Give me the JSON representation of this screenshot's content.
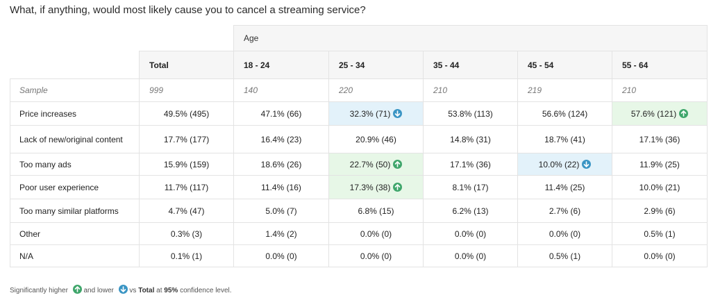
{
  "question": "What, if anything, would most likely cause you to cancel a streaming service?",
  "group_label": "Age",
  "columns": [
    "Total",
    "18 - 24",
    "25 - 34",
    "35 - 44",
    "45 - 54",
    "55 - 64"
  ],
  "sample": {
    "label": "Sample",
    "values": [
      "999",
      "140",
      "220",
      "210",
      "219",
      "210"
    ]
  },
  "rows": [
    {
      "label": "Price increases",
      "values": [
        "49.5% (495)",
        "47.1% (66)",
        "32.3% (71)",
        "53.8% (113)",
        "56.6% (124)",
        "57.6% (121)"
      ],
      "sig": [
        "",
        "",
        "lower",
        "",
        "",
        "higher"
      ]
    },
    {
      "label": "Lack of new/original content",
      "values": [
        "17.7% (177)",
        "16.4% (23)",
        "20.9% (46)",
        "14.8% (31)",
        "18.7% (41)",
        "17.1% (36)"
      ],
      "sig": [
        "",
        "",
        "",
        "",
        "",
        ""
      ]
    },
    {
      "label": "Too many ads",
      "values": [
        "15.9% (159)",
        "18.6% (26)",
        "22.7% (50)",
        "17.1% (36)",
        "10.0% (22)",
        "11.9% (25)"
      ],
      "sig": [
        "",
        "",
        "higher",
        "",
        "lower",
        ""
      ]
    },
    {
      "label": "Poor user experience",
      "values": [
        "11.7% (117)",
        "11.4% (16)",
        "17.3% (38)",
        "8.1% (17)",
        "11.4% (25)",
        "10.0% (21)"
      ],
      "sig": [
        "",
        "",
        "higher",
        "",
        "",
        ""
      ]
    },
    {
      "label": "Too many similar platforms",
      "values": [
        "4.7% (47)",
        "5.0% (7)",
        "6.8% (15)",
        "6.2% (13)",
        "2.7% (6)",
        "2.9% (6)"
      ],
      "sig": [
        "",
        "",
        "",
        "",
        "",
        ""
      ]
    },
    {
      "label": "Other",
      "values": [
        "0.3% (3)",
        "1.4% (2)",
        "0.0% (0)",
        "0.0% (0)",
        "0.0% (0)",
        "0.5% (1)"
      ],
      "sig": [
        "",
        "",
        "",
        "",
        "",
        ""
      ]
    },
    {
      "label": "N/A",
      "values": [
        "0.1% (1)",
        "0.0% (0)",
        "0.0% (0)",
        "0.0% (0)",
        "0.5% (1)",
        "0.0% (0)"
      ],
      "sig": [
        "",
        "",
        "",
        "",
        "",
        ""
      ]
    }
  ],
  "footer": {
    "part1": "Significantly higher",
    "part2": "and lower",
    "part3": "vs",
    "total": "Total",
    "part4": "at",
    "confidence": "95%",
    "part5": "confidence level."
  },
  "colors": {
    "higher_bg": "#e7f7e7",
    "lower_bg": "#e3f2fa",
    "up_arrow": "#3fa66b",
    "down_arrow": "#3a95c4"
  }
}
